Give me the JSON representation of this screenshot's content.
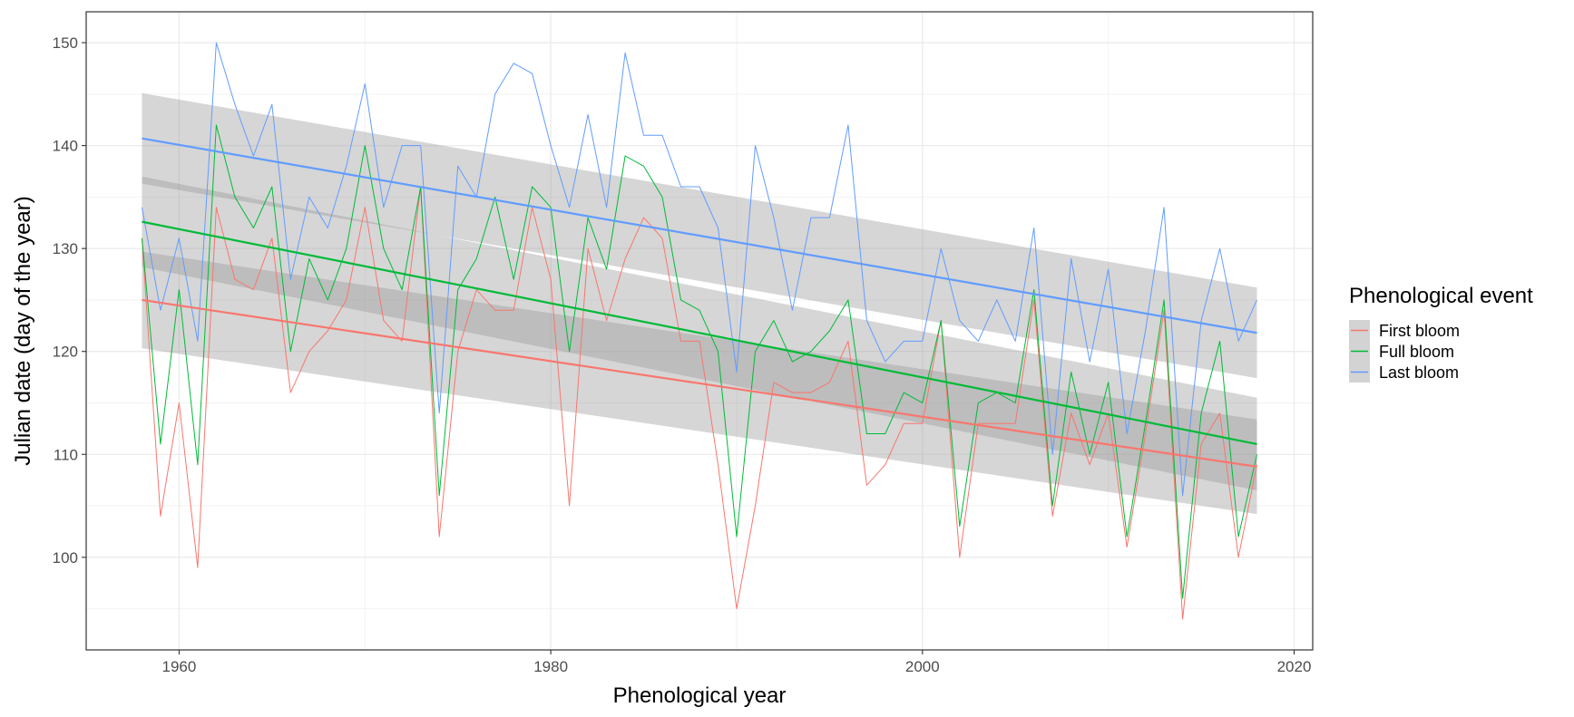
{
  "chart_data": {
    "type": "line",
    "xlabel": "Phenological year",
    "ylabel": "Julian date (day of the year)",
    "xlim": [
      1955,
      2021
    ],
    "ylim": [
      91,
      153
    ],
    "x_ticks": [
      1960,
      1980,
      2000,
      2020
    ],
    "y_ticks": [
      100,
      110,
      120,
      130,
      140,
      150
    ],
    "x_tick_labels": [
      "1960",
      "1980",
      "2000",
      "2020"
    ],
    "y_tick_labels": [
      "100",
      "110",
      "120",
      "130",
      "140",
      "150"
    ],
    "grid": true,
    "legend": {
      "title": "Phenological event",
      "position": "right"
    },
    "x": [
      1958,
      1959,
      1960,
      1961,
      1962,
      1963,
      1964,
      1965,
      1966,
      1967,
      1968,
      1969,
      1970,
      1971,
      1972,
      1973,
      1974,
      1975,
      1976,
      1977,
      1978,
      1979,
      1980,
      1981,
      1982,
      1983,
      1984,
      1985,
      1986,
      1987,
      1988,
      1989,
      1990,
      1991,
      1992,
      1993,
      1994,
      1995,
      1996,
      1997,
      1998,
      1999,
      2000,
      2001,
      2002,
      2003,
      2004,
      2005,
      2006,
      2007,
      2008,
      2009,
      2010,
      2011,
      2012,
      2013,
      2014,
      2015,
      2016,
      2017,
      2018
    ],
    "series": [
      {
        "name": "First bloom",
        "color": "#F8766D",
        "values": [
          131,
          104,
          115,
          99,
          134,
          127,
          126,
          131,
          116,
          120,
          122,
          125,
          134,
          123,
          121,
          136,
          102,
          120,
          126,
          124,
          124,
          134,
          127,
          105,
          130,
          123,
          129,
          133,
          131,
          121,
          121,
          109,
          95,
          105,
          117,
          116,
          116,
          117,
          121,
          107,
          109,
          113,
          113,
          123,
          100,
          113,
          113,
          113,
          125,
          104,
          114,
          109,
          114,
          101,
          112,
          124,
          94,
          111,
          114,
          100,
          109
        ],
        "trend": [
          125.0,
          108.8
        ],
        "band_lower": [
          120.3,
          104.2
        ],
        "band_upper": [
          129.7,
          113.4
        ]
      },
      {
        "name": "Full bloom",
        "color": "#00BA38",
        "values": [
          131,
          111,
          126,
          109,
          142,
          135,
          132,
          136,
          120,
          129,
          125,
          130,
          140,
          130,
          126,
          136,
          106,
          126,
          129,
          135,
          127,
          136,
          134,
          120,
          133,
          128,
          139,
          138,
          135,
          125,
          124,
          120,
          102,
          120,
          123,
          119,
          120,
          122,
          125,
          112,
          112,
          116,
          115,
          123,
          103,
          115,
          116,
          115,
          126,
          105,
          118,
          110,
          117,
          102,
          113,
          125,
          96,
          114,
          121,
          102,
          110
        ],
        "trend": [
          132.6,
          111.0
        ],
        "band_lower": [
          128.2,
          106.5
        ],
        "band_upper": [
          137.0,
          115.5
        ]
      },
      {
        "name": "Last bloom",
        "color": "#619CFF",
        "values": [
          134,
          124,
          131,
          121,
          150,
          144,
          139,
          144,
          127,
          135,
          132,
          138,
          146,
          134,
          140,
          140,
          114,
          138,
          135,
          145,
          148,
          147,
          140,
          134,
          143,
          134,
          149,
          141,
          141,
          136,
          136,
          132,
          118,
          140,
          133,
          124,
          133,
          133,
          142,
          123,
          119,
          121,
          121,
          130,
          123,
          121,
          125,
          121,
          132,
          110,
          129,
          119,
          128,
          112,
          122,
          134,
          106,
          123,
          130,
          121,
          125
        ],
        "trend": [
          140.7,
          121.8
        ],
        "band_lower": [
          136.3,
          117.4
        ],
        "band_upper": [
          145.1,
          126.2
        ]
      }
    ]
  }
}
